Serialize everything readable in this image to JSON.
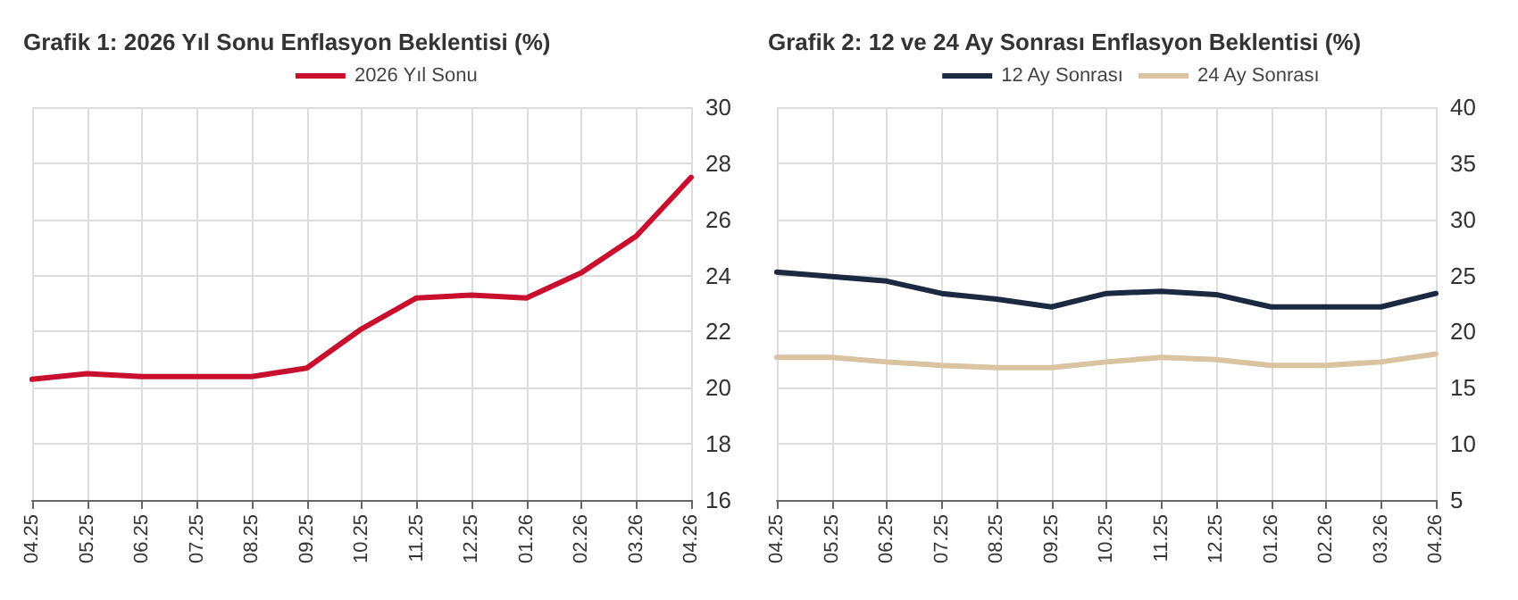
{
  "chart_data": [
    {
      "type": "line",
      "title": "Grafik 1: 2026 Yıl Sonu Enflasyon Beklentisi (%)",
      "categories": [
        "04.25",
        "05.25",
        "06.25",
        "07.25",
        "08.25",
        "09.25",
        "10.25",
        "11.25",
        "12.25",
        "01.26",
        "02.26",
        "03.26",
        "04.26"
      ],
      "series": [
        {
          "name": "2026 Yıl Sonu",
          "color": "#c8102e",
          "values": [
            20.3,
            20.5,
            20.4,
            20.4,
            20.4,
            20.7,
            22.1,
            23.2,
            23.3,
            23.2,
            24.1,
            25.4,
            27.5
          ]
        }
      ],
      "ylim": [
        16,
        30
      ],
      "yticks": [
        16,
        18,
        20,
        22,
        24,
        26,
        28,
        30
      ],
      "grid": true,
      "legend": "top",
      "marker": "none",
      "line_style": "solid"
    },
    {
      "type": "line",
      "title": "Grafik 2: 12 ve 24 Ay Sonrası Enflasyon Beklentisi (%)",
      "categories": [
        "04.25",
        "05.25",
        "06.25",
        "07.25",
        "08.25",
        "09.25",
        "10.25",
        "11.25",
        "12.25",
        "01.26",
        "02.26",
        "03.26",
        "04.26"
      ],
      "series": [
        {
          "name": "12 Ay Sonrası",
          "color": "#1b2a41",
          "values": [
            25.3,
            24.9,
            24.5,
            23.4,
            22.9,
            22.2,
            23.4,
            23.6,
            23.3,
            22.2,
            22.2,
            22.2,
            23.4
          ]
        },
        {
          "name": "24 Ay Sonrası",
          "color": "#d9c3a0",
          "values": [
            17.7,
            17.7,
            17.3,
            17.0,
            16.8,
            16.8,
            17.3,
            17.7,
            17.5,
            17.0,
            17.0,
            17.3,
            18.0
          ]
        }
      ],
      "ylim": [
        5,
        40
      ],
      "yticks": [
        5,
        10,
        15,
        20,
        25,
        30,
        35,
        40
      ],
      "grid": true,
      "legend": "top",
      "marker": "none",
      "line_style": "solid"
    }
  ]
}
